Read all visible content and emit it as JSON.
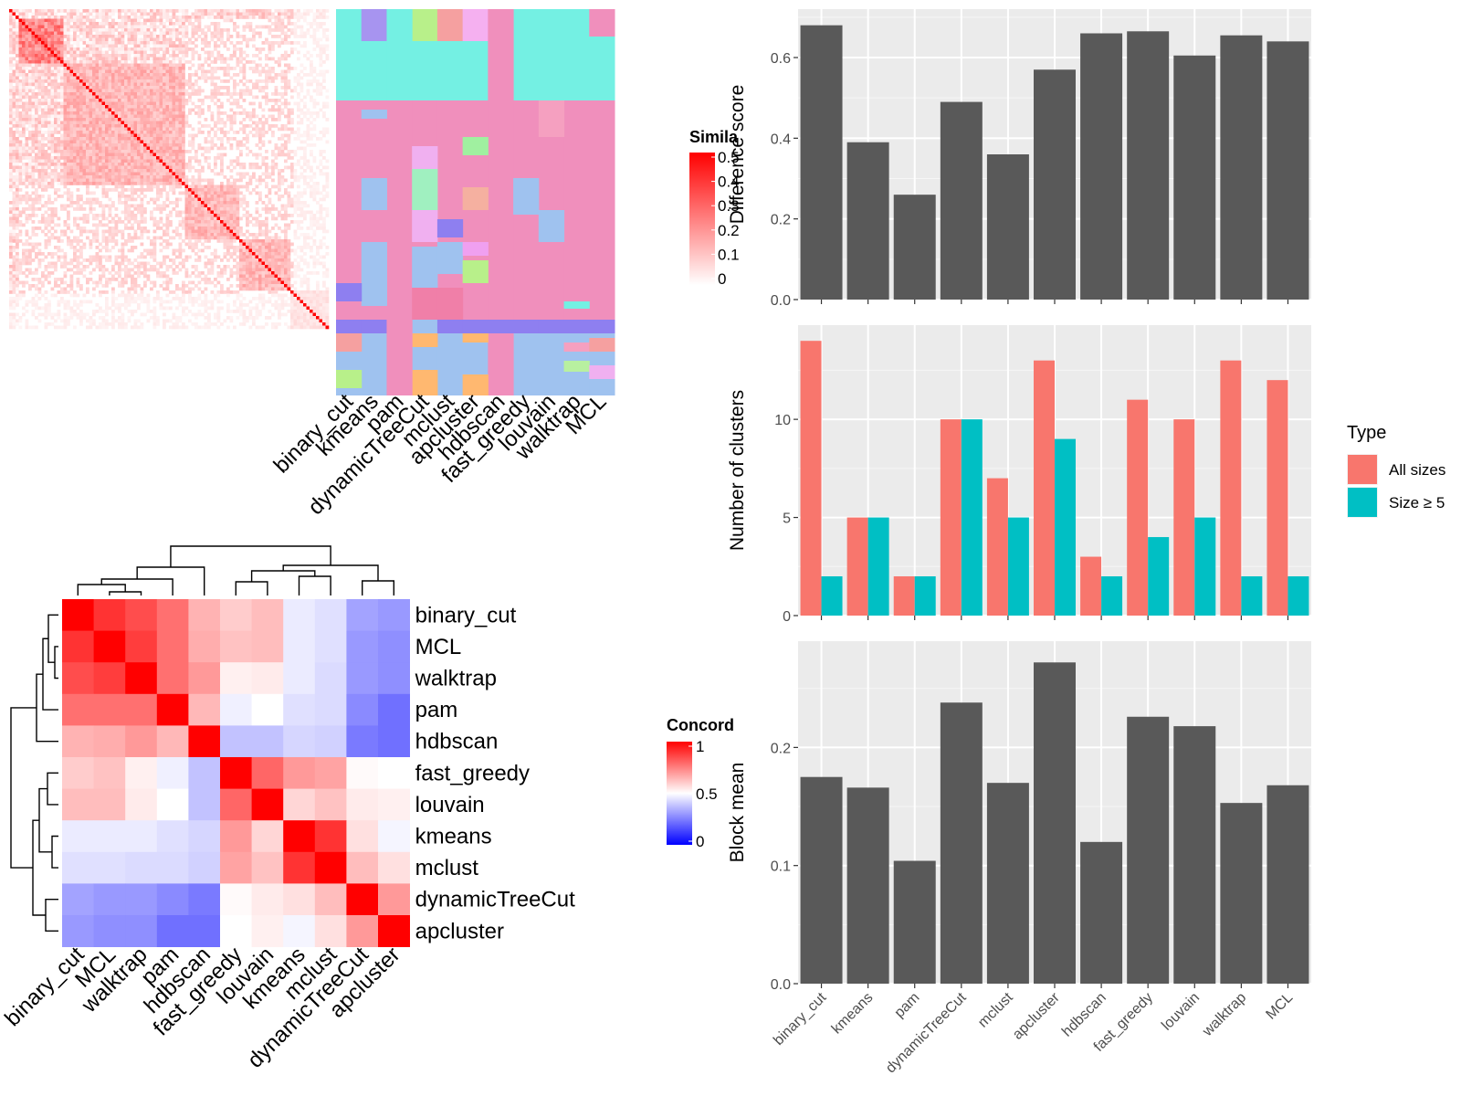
{
  "top_left": {
    "similarity_legend": {
      "title": "Simila",
      "ticks": [
        "0.5",
        "0.4",
        "0.3",
        "0.2",
        "0.1",
        "0"
      ],
      "colors": [
        "#ffffff",
        "#ff0000"
      ]
    },
    "method_labels": [
      "binary_cut",
      "kmeans",
      "pam",
      "dynamicTreeCut",
      "mclust",
      "apcluster",
      "hdbscan",
      "fast_greedy",
      "louvain",
      "walktrap",
      "MCL"
    ]
  },
  "concordance": {
    "legend": {
      "title": "Concord",
      "ticks": [
        "1",
        "0.5",
        "0"
      ],
      "colors": [
        "#0000ff",
        "#ffffff",
        "#ff0000"
      ]
    },
    "row_labels": [
      "binary_cut",
      "MCL",
      "walktrap",
      "pam",
      "hdbscan",
      "fast_greedy",
      "louvain",
      "kmeans",
      "mclust",
      "dynamicTreeCut",
      "apcluster"
    ],
    "col_labels": [
      "binary_cut",
      "MCL",
      "walktrap",
      "pam",
      "hdbscan",
      "fast_greedy",
      "louvain",
      "kmeans",
      "mclust",
      "dynamicTreeCut",
      "apcluster"
    ],
    "matrix": [
      [
        1.0,
        0.9,
        0.85,
        0.78,
        0.65,
        0.6,
        0.63,
        0.46,
        0.44,
        0.32,
        0.3
      ],
      [
        0.9,
        1.0,
        0.88,
        0.78,
        0.66,
        0.62,
        0.63,
        0.46,
        0.44,
        0.3,
        0.28
      ],
      [
        0.85,
        0.88,
        1.0,
        0.78,
        0.7,
        0.53,
        0.54,
        0.46,
        0.43,
        0.3,
        0.28
      ],
      [
        0.78,
        0.78,
        0.78,
        1.0,
        0.64,
        0.47,
        0.5,
        0.44,
        0.43,
        0.27,
        0.22
      ],
      [
        0.65,
        0.66,
        0.7,
        0.64,
        1.0,
        0.38,
        0.38,
        0.42,
        0.41,
        0.24,
        0.22
      ],
      [
        0.6,
        0.62,
        0.53,
        0.47,
        0.38,
        1.0,
        0.8,
        0.7,
        0.68,
        0.51,
        0.5
      ],
      [
        0.63,
        0.63,
        0.54,
        0.5,
        0.38,
        0.8,
        1.0,
        0.58,
        0.62,
        0.54,
        0.53
      ],
      [
        0.46,
        0.46,
        0.46,
        0.44,
        0.42,
        0.7,
        0.58,
        1.0,
        0.9,
        0.56,
        0.48
      ],
      [
        0.44,
        0.44,
        0.43,
        0.43,
        0.41,
        0.68,
        0.62,
        0.9,
        1.0,
        0.63,
        0.56
      ],
      [
        0.32,
        0.3,
        0.3,
        0.27,
        0.24,
        0.51,
        0.54,
        0.56,
        0.63,
        1.0,
        0.7
      ],
      [
        0.3,
        0.28,
        0.28,
        0.22,
        0.22,
        0.5,
        0.53,
        0.48,
        0.56,
        0.7,
        1.0
      ]
    ]
  },
  "chart_data": [
    {
      "type": "bar",
      "categories": [
        "binary_cut",
        "kmeans",
        "pam",
        "dynamicTreeCut",
        "mclust",
        "apcluster",
        "hdbscan",
        "fast_greedy",
        "louvain",
        "walktrap",
        "MCL"
      ],
      "values": [
        0.68,
        0.39,
        0.26,
        0.49,
        0.36,
        0.57,
        0.66,
        0.665,
        0.605,
        0.655,
        0.64
      ],
      "xlabel": "",
      "ylabel": "Difference score",
      "ylim": [
        0,
        0.72
      ],
      "yticks": [
        "0.0",
        "0.2",
        "0.4",
        "0.6"
      ],
      "bar_color": "#595959",
      "grid": true
    },
    {
      "type": "bar",
      "categories": [
        "binary_cut",
        "kmeans",
        "pam",
        "dynamicTreeCut",
        "mclust",
        "apcluster",
        "hdbscan",
        "fast_greedy",
        "louvain",
        "walktrap",
        "MCL"
      ],
      "series": [
        {
          "name": "All sizes",
          "values": [
            14,
            5,
            2,
            10,
            7,
            13,
            3,
            11,
            10,
            13,
            12
          ],
          "color": "#f8766d"
        },
        {
          "name": "Size ≥ 5",
          "values": [
            2,
            5,
            2,
            10,
            5,
            9,
            2,
            4,
            5,
            2,
            2
          ],
          "color": "#00bfc4"
        }
      ],
      "xlabel": "",
      "ylabel": "Number of clusters",
      "ylim": [
        0,
        14.8
      ],
      "yticks": [
        "0",
        "5",
        "10"
      ],
      "legend": {
        "title": "Type",
        "placement": "right"
      },
      "grid": true
    },
    {
      "type": "bar",
      "categories": [
        "binary_cut",
        "kmeans",
        "pam",
        "dynamicTreeCut",
        "mclust",
        "apcluster",
        "hdbscan",
        "fast_greedy",
        "louvain",
        "walktrap",
        "MCL"
      ],
      "values": [
        0.175,
        0.166,
        0.104,
        0.238,
        0.17,
        0.272,
        0.12,
        0.226,
        0.218,
        0.153,
        0.168
      ],
      "xlabel": "",
      "ylabel": "Block mean",
      "ylim": [
        0,
        0.29
      ],
      "yticks": [
        "0.0",
        "0.1",
        "0.2"
      ],
      "bar_color": "#595959",
      "grid": true
    }
  ]
}
